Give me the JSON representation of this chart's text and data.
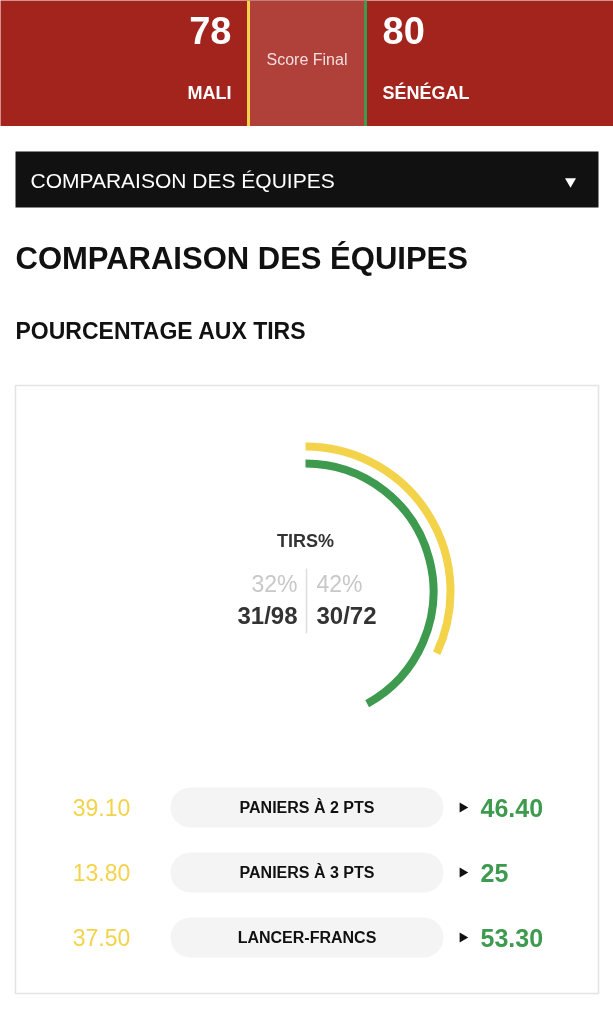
{
  "chart_data": [
    {
      "type": "other",
      "categories": [
        "MALI",
        "SÉNÉGAL"
      ],
      "values": [
        78,
        80
      ],
      "data_labels": true,
      "annotations": [
        "Score Final",
        "COMPARAISON DES ÉQUIPES"
      ]
    },
    {
      "type": "other",
      "title": "COMPARAISON DES ÉQUIPES",
      "subtitle": "POURCENTAGE AUX TIRS",
      "categories": [
        "TIRS%",
        "PANIERS À 2 PTS",
        "PANIERS À 3 PTS",
        "LANCER-FRANCS"
      ],
      "series": [
        {
          "color": "#f2d34a",
          "values": [
            32,
            39.1,
            13.8,
            37.5
          ],
          "value_labels": [
            "32%",
            "39.10",
            "13.80",
            "37.50"
          ]
        },
        {
          "color": "#3d9a4e",
          "values": [
            42,
            46.4,
            25,
            53.3
          ],
          "value_labels": [
            "42%",
            "46.40",
            "25",
            "53.30"
          ]
        }
      ],
      "annotations": [
        "31/98",
        "30/72"
      ]
    }
  ]
}
